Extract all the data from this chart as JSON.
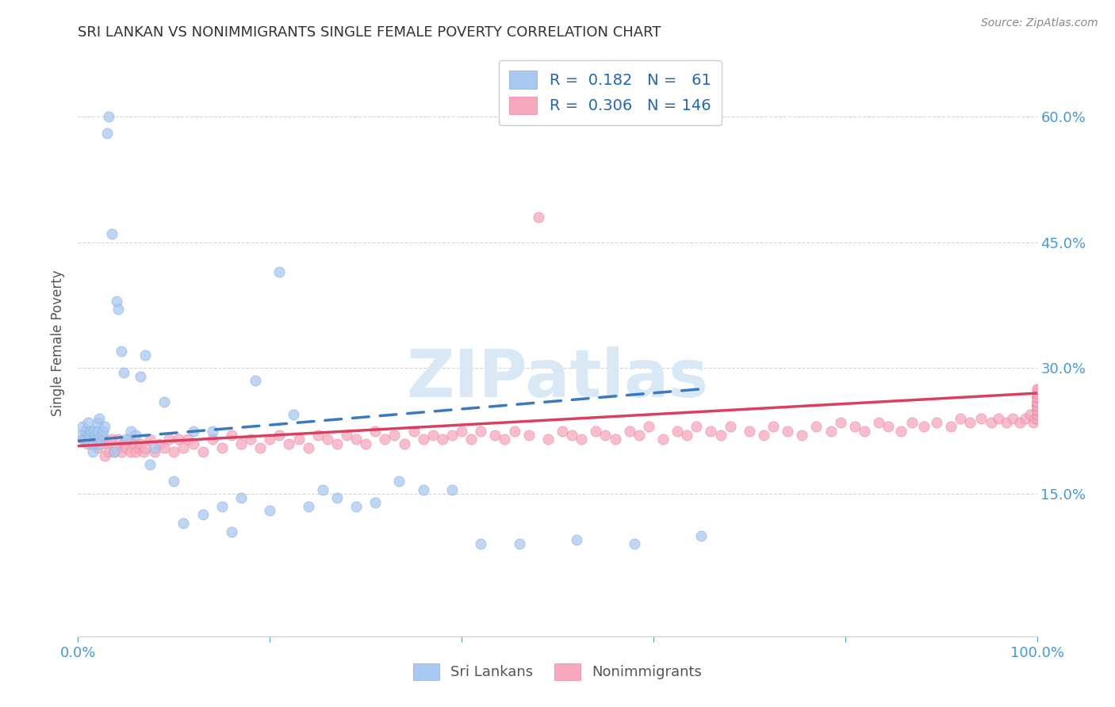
{
  "title": "SRI LANKAN VS NONIMMIGRANTS SINGLE FEMALE POVERTY CORRELATION CHART",
  "source": "Source: ZipAtlas.com",
  "ylabel": "Single Female Poverty",
  "legend_label1": "Sri Lankans",
  "legend_label2": "Nonimmigrants",
  "R1": 0.182,
  "N1": 61,
  "R2": 0.306,
  "N2": 146,
  "color1": "#a8c8f0",
  "color2": "#f8a8bc",
  "color1_edge": "#85aee0",
  "color2_edge": "#e880a0",
  "trendline1_color": "#3a7abf",
  "trendline2_color": "#d94060",
  "background_color": "#ffffff",
  "grid_color": "#cccccc",
  "title_color": "#333333",
  "axis_tick_color": "#4499dd",
  "watermark_color": "#d8e8f4",
  "sri_lankans_x": [
    0.003,
    0.005,
    0.007,
    0.008,
    0.01,
    0.01,
    0.012,
    0.013,
    0.015,
    0.015,
    0.016,
    0.018,
    0.02,
    0.02,
    0.02,
    0.022,
    0.023,
    0.025,
    0.026,
    0.028,
    0.03,
    0.032,
    0.035,
    0.038,
    0.04,
    0.042,
    0.045,
    0.048,
    0.05,
    0.055,
    0.06,
    0.065,
    0.07,
    0.075,
    0.08,
    0.09,
    0.1,
    0.11,
    0.12,
    0.13,
    0.14,
    0.15,
    0.16,
    0.17,
    0.185,
    0.2,
    0.21,
    0.225,
    0.24,
    0.255,
    0.27,
    0.29,
    0.31,
    0.335,
    0.36,
    0.39,
    0.42,
    0.46,
    0.52,
    0.58,
    0.65
  ],
  "sri_lankans_y": [
    0.22,
    0.23,
    0.215,
    0.225,
    0.22,
    0.235,
    0.22,
    0.225,
    0.2,
    0.21,
    0.225,
    0.22,
    0.215,
    0.235,
    0.225,
    0.24,
    0.21,
    0.22,
    0.225,
    0.23,
    0.58,
    0.6,
    0.46,
    0.2,
    0.38,
    0.37,
    0.32,
    0.295,
    0.215,
    0.225,
    0.22,
    0.29,
    0.315,
    0.185,
    0.205,
    0.26,
    0.165,
    0.115,
    0.225,
    0.125,
    0.225,
    0.135,
    0.105,
    0.145,
    0.285,
    0.13,
    0.415,
    0.245,
    0.135,
    0.155,
    0.145,
    0.135,
    0.14,
    0.165,
    0.155,
    0.155,
    0.09,
    0.09,
    0.095,
    0.09,
    0.1
  ],
  "nonimmigrants_x": [
    0.005,
    0.01,
    0.015,
    0.02,
    0.025,
    0.028,
    0.03,
    0.032,
    0.035,
    0.038,
    0.04,
    0.042,
    0.045,
    0.048,
    0.05,
    0.053,
    0.055,
    0.058,
    0.06,
    0.063,
    0.065,
    0.068,
    0.07,
    0.075,
    0.08,
    0.085,
    0.09,
    0.095,
    0.1,
    0.105,
    0.11,
    0.115,
    0.12,
    0.13,
    0.14,
    0.15,
    0.16,
    0.17,
    0.18,
    0.19,
    0.2,
    0.21,
    0.22,
    0.23,
    0.24,
    0.25,
    0.26,
    0.27,
    0.28,
    0.29,
    0.3,
    0.31,
    0.32,
    0.33,
    0.34,
    0.35,
    0.36,
    0.37,
    0.38,
    0.39,
    0.4,
    0.41,
    0.42,
    0.435,
    0.445,
    0.455,
    0.47,
    0.48,
    0.49,
    0.505,
    0.515,
    0.525,
    0.54,
    0.55,
    0.56,
    0.575,
    0.585,
    0.595,
    0.61,
    0.625,
    0.635,
    0.645,
    0.66,
    0.67,
    0.68,
    0.7,
    0.715,
    0.725,
    0.74,
    0.755,
    0.77,
    0.785,
    0.795,
    0.81,
    0.82,
    0.835,
    0.845,
    0.858,
    0.87,
    0.882,
    0.895,
    0.91,
    0.92,
    0.93,
    0.942,
    0.952,
    0.96,
    0.968,
    0.975,
    0.982,
    0.988,
    0.993,
    0.996,
    0.998,
    1.0,
    1.0,
    1.0,
    1.0,
    1.0,
    1.0,
    1.0,
    1.0,
    1.0,
    1.0,
    1.0,
    1.0,
    1.0,
    1.0,
    1.0,
    1.0,
    1.0,
    1.0,
    1.0,
    1.0,
    1.0,
    1.0,
    1.0,
    1.0,
    1.0,
    1.0,
    1.0,
    1.0,
    1.0,
    1.0,
    1.0,
    1.0
  ],
  "nonimmigrants_y": [
    0.215,
    0.21,
    0.22,
    0.205,
    0.215,
    0.195,
    0.21,
    0.2,
    0.215,
    0.2,
    0.205,
    0.215,
    0.2,
    0.21,
    0.205,
    0.215,
    0.2,
    0.21,
    0.2,
    0.205,
    0.21,
    0.2,
    0.205,
    0.215,
    0.2,
    0.21,
    0.205,
    0.215,
    0.2,
    0.215,
    0.205,
    0.215,
    0.21,
    0.2,
    0.215,
    0.205,
    0.22,
    0.21,
    0.215,
    0.205,
    0.215,
    0.22,
    0.21,
    0.215,
    0.205,
    0.22,
    0.215,
    0.21,
    0.22,
    0.215,
    0.21,
    0.225,
    0.215,
    0.22,
    0.21,
    0.225,
    0.215,
    0.22,
    0.215,
    0.22,
    0.225,
    0.215,
    0.225,
    0.22,
    0.215,
    0.225,
    0.22,
    0.48,
    0.215,
    0.225,
    0.22,
    0.215,
    0.225,
    0.22,
    0.215,
    0.225,
    0.22,
    0.23,
    0.215,
    0.225,
    0.22,
    0.23,
    0.225,
    0.22,
    0.23,
    0.225,
    0.22,
    0.23,
    0.225,
    0.22,
    0.23,
    0.225,
    0.235,
    0.23,
    0.225,
    0.235,
    0.23,
    0.225,
    0.235,
    0.23,
    0.235,
    0.23,
    0.24,
    0.235,
    0.24,
    0.235,
    0.24,
    0.235,
    0.24,
    0.235,
    0.24,
    0.245,
    0.235,
    0.24,
    0.25,
    0.245,
    0.24,
    0.255,
    0.25,
    0.245,
    0.25,
    0.255,
    0.25,
    0.255,
    0.26,
    0.255,
    0.25,
    0.255,
    0.26,
    0.25,
    0.26,
    0.255,
    0.265,
    0.255,
    0.26,
    0.265,
    0.26,
    0.265,
    0.27,
    0.265,
    0.27,
    0.265,
    0.27,
    0.275,
    0.27,
    0.275
  ],
  "xlim": [
    0.0,
    1.0
  ],
  "ylim": [
    -0.02,
    0.68
  ],
  "yticks": [
    0.15,
    0.3,
    0.45,
    0.6
  ],
  "ytick_labels": [
    "15.0%",
    "30.0%",
    "45.0%",
    "60.0%"
  ],
  "trendline1_start_x": 0.0,
  "trendline1_start_y": 0.213,
  "trendline1_end_x": 0.65,
  "trendline1_end_y": 0.275,
  "trendline2_start_x": 0.0,
  "trendline2_start_y": 0.207,
  "trendline2_end_x": 1.0,
  "trendline2_end_y": 0.27
}
